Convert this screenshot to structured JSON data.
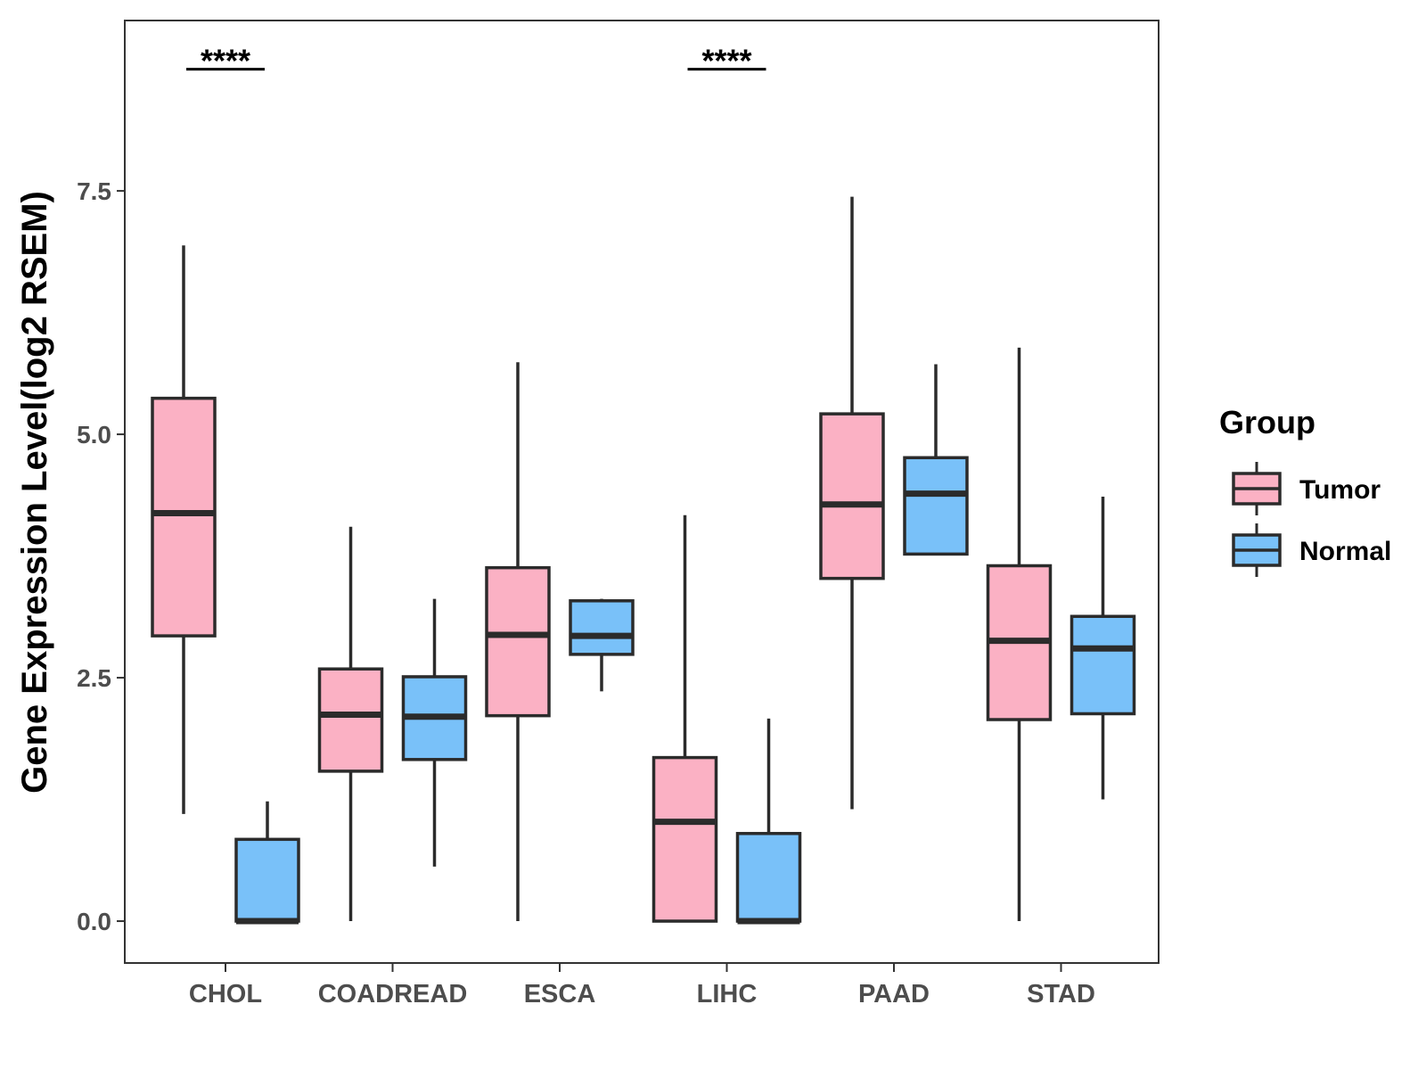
{
  "chart_data": {
    "type": "boxplot",
    "ylabel": "Gene Expression Level(log2 RSEM)",
    "xlabel": "",
    "ylim": [
      -0.43,
      9.25
    ],
    "yticks": [
      0.0,
      2.5,
      5.0,
      7.5
    ],
    "ytick_labels": [
      "0.0",
      "2.5",
      "5.0",
      "7.5"
    ],
    "categories": [
      "CHOL",
      "COADREAD",
      "ESCA",
      "LIHC",
      "PAAD",
      "STAD"
    ],
    "legend": {
      "title": "Group",
      "position": "right",
      "entries": [
        {
          "name": "Tumor",
          "color": "#FBB1C4"
        },
        {
          "name": "Normal",
          "color": "#79C1F9"
        }
      ]
    },
    "series": [
      {
        "name": "Tumor",
        "color": "#FBB1C4",
        "boxes": [
          {
            "category": "CHOL",
            "min": 1.1,
            "q1": 2.93,
            "median": 4.19,
            "q3": 5.37,
            "max": 6.94
          },
          {
            "category": "COADREAD",
            "min": 0.0,
            "q1": 1.54,
            "median": 2.12,
            "q3": 2.59,
            "max": 4.05
          },
          {
            "category": "ESCA",
            "min": 0.0,
            "q1": 2.11,
            "median": 2.94,
            "q3": 3.63,
            "max": 5.74
          },
          {
            "category": "LIHC",
            "min": 0.0,
            "q1": 0.0,
            "median": 1.02,
            "q3": 1.68,
            "max": 4.17
          },
          {
            "category": "PAAD",
            "min": 1.15,
            "q1": 3.52,
            "median": 4.28,
            "q3": 5.21,
            "max": 7.44
          },
          {
            "category": "STAD",
            "min": 0.0,
            "q1": 2.07,
            "median": 2.88,
            "q3": 3.65,
            "max": 5.89
          }
        ]
      },
      {
        "name": "Normal",
        "color": "#79C1F9",
        "boxes": [
          {
            "category": "CHOL",
            "min": 0.0,
            "q1": 0.0,
            "median": 0.0,
            "q3": 0.84,
            "max": 1.23
          },
          {
            "category": "COADREAD",
            "min": 0.56,
            "q1": 1.66,
            "median": 2.1,
            "q3": 2.51,
            "max": 3.31
          },
          {
            "category": "ESCA",
            "min": 2.36,
            "q1": 2.74,
            "median": 2.93,
            "q3": 3.29,
            "max": 3.31
          },
          {
            "category": "LIHC",
            "min": 0.0,
            "q1": 0.0,
            "median": 0.0,
            "q3": 0.9,
            "max": 2.08
          },
          {
            "category": "PAAD",
            "min": 3.77,
            "q1": 3.77,
            "median": 4.39,
            "q3": 4.76,
            "max": 5.72
          },
          {
            "category": "STAD",
            "min": 1.25,
            "q1": 2.13,
            "median": 2.8,
            "q3": 3.13,
            "max": 4.36
          }
        ]
      }
    ],
    "annotations": [
      {
        "category": "CHOL",
        "text": "****",
        "y": 8.75
      },
      {
        "category": "LIHC",
        "text": "****",
        "y": 8.75
      }
    ]
  }
}
